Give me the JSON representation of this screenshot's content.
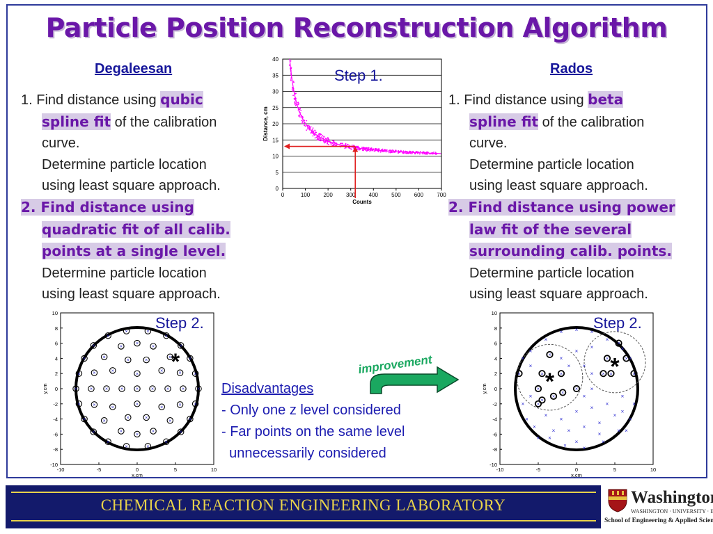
{
  "title": "Particle Position Reconstruction Algorithm",
  "left": {
    "heading": "Degaleesan",
    "lines": [
      {
        "pre": "1. Find distance using ",
        "bold": "qubic"
      },
      {
        "bold": "spline fit",
        "post": " of the calibration"
      },
      {
        "text": "curve."
      },
      {
        "text": "Determine particle location"
      },
      {
        "text": "using least square approach."
      },
      {
        "bold": "2. Find distance using"
      },
      {
        "bold": "quadratic fit of all calib."
      },
      {
        "bold": "points at a single level."
      },
      {
        "text": "Determine particle location"
      },
      {
        "text": "using least square approach."
      }
    ]
  },
  "right": {
    "heading": "Rados",
    "lines": [
      {
        "pre": "1. Find distance using ",
        "bold": "beta"
      },
      {
        "bold": "spline fit",
        "post": " of the calibration"
      },
      {
        "text": "curve."
      },
      {
        "text": "Determine particle location"
      },
      {
        "text": "using least square approach."
      },
      {
        "bold": "2. Find distance using power"
      },
      {
        "bold": "law fit of the several"
      },
      {
        "bold": "surrounding calib. points."
      },
      {
        "text": "Determine particle location"
      },
      {
        "text": "using least square approach."
      }
    ]
  },
  "step1_label": "Step 1.",
  "step2_label": "Step 2.",
  "improvement_label": "improvement",
  "disadvantages": {
    "heading": "Disadvantages",
    "items": [
      "- Only one z level considered",
      "- Far points on the same level",
      "  unnecessarily considered"
    ]
  },
  "footer": {
    "lab": "CHEMICAL  REACTION  ENGINEERING  LABORATORY",
    "univ_name": "Washington",
    "univ_sub": "WASHINGTON · UNIVERSITY · IN · ST · LOUIS",
    "school": "School of Engineering & Applied Science"
  },
  "colors": {
    "accent_purple": "#6a17a8",
    "navy": "#16169a",
    "footer_band": "#131a6b",
    "footer_gold": "#e8d24a",
    "curve": "#ff00ff",
    "arrow_red": "#e02020",
    "improvement_green": "#1aa860"
  },
  "chart_data": [
    {
      "type": "scatter",
      "xlabel": "Counts",
      "ylabel": "Distance, cm",
      "xlim": [
        0,
        700
      ],
      "ylim": [
        0,
        40
      ],
      "x_ticks": [
        0,
        100,
        200,
        300,
        400,
        500,
        600,
        700
      ],
      "y_ticks": [
        0,
        5,
        10,
        15,
        20,
        25,
        30,
        35,
        40
      ],
      "grid": "horizontal",
      "series_color": "#ff00ff",
      "lookup_point": {
        "x": 320,
        "y": 13
      }
    },
    {
      "type": "scatter",
      "xlabel": "x,cm",
      "ylabel": "y,cm",
      "xlim": [
        -10,
        10
      ],
      "ylim": [
        -10,
        10
      ],
      "x_ticks": [
        -10,
        -5,
        0,
        5,
        10
      ],
      "y_ticks": [
        -10,
        -8,
        -6,
        -4,
        -2,
        0,
        2,
        4,
        6,
        8,
        10
      ],
      "vessel_radius": 8,
      "marker": "circled-x",
      "particle": {
        "x": 5,
        "y": 3.5
      },
      "points": [
        [
          -8,
          0
        ],
        [
          -7.6,
          2
        ],
        [
          -7.6,
          -2
        ],
        [
          -6.9,
          4
        ],
        [
          -6.9,
          -4
        ],
        [
          -5.7,
          5.7
        ],
        [
          -5.7,
          -5.7
        ],
        [
          -3.8,
          7
        ],
        [
          -3.8,
          -7
        ],
        [
          -1.4,
          7.6
        ],
        [
          -1.4,
          -7.6
        ],
        [
          1.4,
          7.6
        ],
        [
          1.4,
          -7.6
        ],
        [
          3.8,
          7
        ],
        [
          3.8,
          -7
        ],
        [
          5.7,
          5.7
        ],
        [
          5.7,
          -5.7
        ],
        [
          6.9,
          4
        ],
        [
          6.9,
          -4
        ],
        [
          7.6,
          2
        ],
        [
          7.6,
          -2
        ],
        [
          8,
          0
        ],
        [
          -6,
          0
        ],
        [
          -5.6,
          2.1
        ],
        [
          -5.6,
          -2.1
        ],
        [
          -4.3,
          4.2
        ],
        [
          -4.3,
          -4.2
        ],
        [
          -2.1,
          5.6
        ],
        [
          -2.1,
          -5.6
        ],
        [
          0,
          6
        ],
        [
          0,
          -6
        ],
        [
          2.1,
          5.6
        ],
        [
          2.1,
          -5.6
        ],
        [
          4.3,
          4.2
        ],
        [
          4.3,
          -4.2
        ],
        [
          5.6,
          2.1
        ],
        [
          5.6,
          -2.1
        ],
        [
          6,
          0
        ],
        [
          -4,
          0
        ],
        [
          -3.2,
          2.4
        ],
        [
          -3.2,
          -2.4
        ],
        [
          -1.2,
          3.8
        ],
        [
          -1.2,
          -3.8
        ],
        [
          1.2,
          3.8
        ],
        [
          1.2,
          -3.8
        ],
        [
          3.2,
          2.4
        ],
        [
          3.2,
          -2.4
        ],
        [
          4,
          0
        ],
        [
          -2,
          0
        ],
        [
          0,
          2
        ],
        [
          0,
          -2
        ],
        [
          2,
          0
        ],
        [
          0,
          0
        ]
      ]
    },
    {
      "type": "scatter",
      "xlabel": "x,cm",
      "ylabel": "y,cm",
      "xlim": [
        -10,
        10
      ],
      "ylim": [
        -10,
        10
      ],
      "x_ticks": [
        -10,
        -5,
        0,
        5,
        10
      ],
      "y_ticks": [
        -10,
        -8,
        -6,
        -4,
        -2,
        0,
        2,
        4,
        6,
        8,
        10
      ],
      "vessel_radius": 8,
      "particles": [
        {
          "x": -3.5,
          "y": 1
        },
        {
          "x": 5,
          "y": 3
        }
      ],
      "neighborhoods": [
        {
          "x": -3.5,
          "y": 1.5,
          "r": 4.3
        },
        {
          "x": 5,
          "y": 3.5,
          "r": 4
        }
      ],
      "selected_points": [
        [
          -7.5,
          2
        ],
        [
          -3.5,
          4.5
        ],
        [
          -4.5,
          2
        ],
        [
          -2,
          2
        ],
        [
          -5,
          0
        ],
        [
          -4.5,
          -1.5
        ],
        [
          -3,
          -1
        ],
        [
          -1.8,
          -0.5
        ],
        [
          0,
          0
        ],
        [
          -5,
          -2
        ],
        [
          5.5,
          6
        ],
        [
          4,
          4
        ],
        [
          6.5,
          4
        ],
        [
          3.5,
          2
        ],
        [
          4.5,
          2
        ],
        [
          7.5,
          2
        ]
      ],
      "points": [
        [
          -7,
          4
        ],
        [
          -6,
          5
        ],
        [
          -4,
          6.5
        ],
        [
          -2,
          7.5
        ],
        [
          0,
          7.8
        ],
        [
          2,
          7.5
        ],
        [
          4,
          6.5
        ],
        [
          6,
          5.3
        ],
        [
          7,
          4
        ],
        [
          -6,
          3
        ],
        [
          -2,
          4
        ],
        [
          0,
          5
        ],
        [
          2,
          5.5
        ],
        [
          -1,
          3
        ],
        [
          1,
          3
        ],
        [
          2,
          2
        ],
        [
          2,
          0
        ],
        [
          1,
          -1
        ],
        [
          -6,
          -1
        ],
        [
          -7,
          -2
        ],
        [
          -6.5,
          -4
        ],
        [
          -5.5,
          -5
        ],
        [
          -3.5,
          -6.5
        ],
        [
          -1.5,
          -7.5
        ],
        [
          1,
          -7.8
        ],
        [
          3.5,
          -7
        ],
        [
          5.5,
          -5.5
        ],
        [
          7,
          -4
        ],
        [
          7.5,
          -2
        ],
        [
          -4,
          -3.5
        ],
        [
          -2,
          -4
        ],
        [
          0,
          -3
        ],
        [
          2,
          -2.5
        ],
        [
          4,
          -2
        ],
        [
          6,
          -1
        ],
        [
          -3,
          -5.5
        ],
        [
          -1,
          -5.5
        ],
        [
          1,
          -5
        ],
        [
          3,
          -4.5
        ],
        [
          5,
          -3.5
        ],
        [
          6,
          -3
        ],
        [
          3,
          -6
        ],
        [
          0,
          -7
        ],
        [
          -5,
          -6.5
        ],
        [
          6.5,
          -5.5
        ]
      ]
    }
  ]
}
